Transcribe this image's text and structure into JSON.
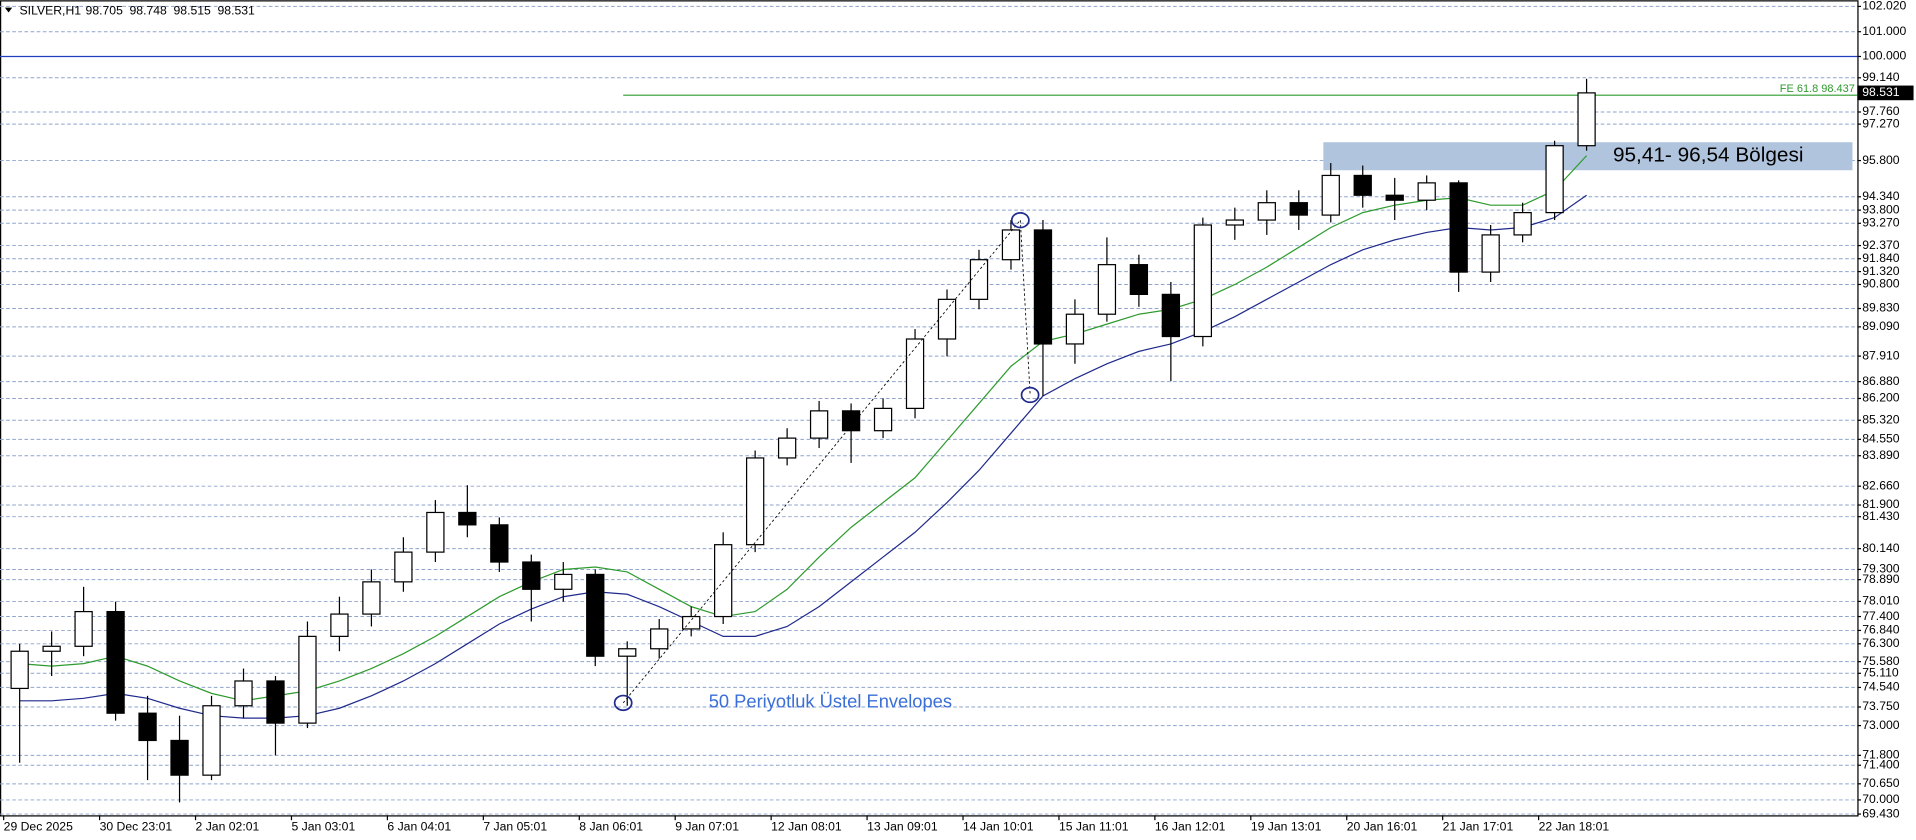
{
  "chart_data": {
    "type": "candlestick",
    "title": "SILVER,H1",
    "ohlc_header": [
      98.705,
      98.748,
      98.515,
      98.531
    ],
    "x": [
      "29 Dec 2025",
      null,
      null,
      "30 Dec 23:01",
      null,
      null,
      "2 Jan 02:01",
      null,
      null,
      "5 Jan 03:01",
      null,
      null,
      "6 Jan 04:01",
      null,
      null,
      "7 Jan 05:01",
      null,
      null,
      "8 Jan 06:01",
      null,
      null,
      "9 Jan 07:01",
      null,
      null,
      "12 Jan 08:01",
      null,
      null,
      "13 Jan 09:01",
      null,
      null,
      "14 Jan 10:01",
      null,
      null,
      "15 Jan 11:01",
      null,
      null,
      "16 Jan 12:01",
      null,
      null,
      "19 Jan 13:01",
      null,
      null,
      "20 Jan 16:01",
      null,
      null,
      "21 Jan 17:01",
      null,
      null,
      "22 Jan 18:01",
      null
    ],
    "open": [
      74.5,
      76.0,
      76.2,
      77.6,
      73.5,
      72.4,
      71.0,
      73.8,
      74.8,
      73.1,
      76.6,
      77.5,
      78.8,
      80.0,
      81.6,
      81.1,
      79.6,
      78.5,
      79.1,
      75.8,
      76.1,
      76.9,
      77.4,
      80.3,
      83.8,
      84.6,
      85.7,
      84.9,
      85.8,
      88.6,
      90.2,
      91.8,
      93.0,
      88.4,
      89.6,
      91.6,
      90.4,
      88.7,
      93.2,
      93.4,
      94.1,
      93.6,
      95.2,
      94.4,
      94.2,
      94.9,
      91.3,
      92.8,
      93.7,
      96.4
    ],
    "high": [
      76.3,
      76.8,
      78.6,
      78.0,
      74.2,
      73.4,
      74.2,
      75.3,
      75.0,
      77.2,
      78.2,
      79.3,
      80.6,
      82.1,
      82.7,
      81.4,
      79.9,
      79.6,
      79.3,
      76.4,
      77.3,
      77.8,
      80.8,
      84.1,
      85.0,
      86.1,
      86.0,
      86.2,
      89.0,
      90.6,
      92.2,
      93.4,
      93.4,
      90.2,
      92.7,
      92.0,
      90.9,
      93.5,
      93.9,
      94.6,
      94.6,
      95.7,
      95.6,
      95.1,
      95.2,
      95.0,
      93.2,
      94.1,
      96.6,
      99.1
    ],
    "low": [
      71.5,
      75.0,
      75.8,
      73.2,
      70.8,
      69.9,
      70.8,
      73.3,
      71.8,
      72.9,
      76.0,
      77.0,
      78.4,
      79.6,
      80.6,
      79.2,
      77.2,
      78.0,
      75.4,
      73.8,
      75.7,
      76.6,
      77.1,
      80.0,
      83.5,
      84.2,
      83.6,
      84.6,
      85.4,
      87.9,
      89.8,
      91.4,
      86.3,
      87.6,
      89.3,
      89.9,
      86.9,
      88.3,
      92.6,
      92.8,
      93.0,
      93.3,
      93.9,
      93.4,
      93.8,
      90.5,
      90.9,
      92.5,
      93.4,
      96.2
    ],
    "close": [
      76.0,
      76.2,
      77.6,
      73.5,
      72.4,
      71.0,
      73.8,
      74.8,
      73.1,
      76.6,
      77.5,
      78.8,
      80.0,
      81.6,
      81.1,
      79.6,
      78.5,
      79.1,
      75.8,
      76.1,
      76.9,
      77.4,
      80.3,
      83.8,
      84.6,
      85.7,
      84.9,
      85.8,
      88.6,
      90.2,
      91.8,
      93.0,
      88.4,
      89.6,
      91.6,
      90.4,
      88.7,
      93.2,
      93.4,
      94.1,
      93.6,
      95.2,
      94.4,
      94.2,
      94.9,
      91.3,
      92.8,
      93.7,
      96.4,
      98.531
    ],
    "candle_color": "#000000",
    "envelopes": [
      {
        "color": "#2e9b2e",
        "values": [
          75.5,
          75.4,
          75.5,
          75.8,
          75.4,
          74.8,
          74.3,
          74.0,
          74.2,
          74.4,
          74.8,
          75.3,
          75.9,
          76.6,
          77.4,
          78.2,
          78.8,
          79.3,
          79.4,
          79.2,
          78.5,
          77.8,
          77.4,
          77.6,
          78.5,
          79.8,
          81.0,
          82.0,
          83.0,
          84.5,
          86.0,
          87.5,
          88.5,
          88.8,
          89.2,
          89.6,
          89.8,
          90.2,
          90.8,
          91.5,
          92.3,
          93.1,
          93.7,
          94.0,
          94.2,
          94.3,
          94.0,
          94.0,
          94.6,
          96.0
        ]
      },
      {
        "color": "#1f2a8c",
        "values": [
          74.0,
          74.0,
          74.1,
          74.3,
          74.1,
          73.7,
          73.4,
          73.3,
          73.3,
          73.4,
          73.7,
          74.2,
          74.8,
          75.5,
          76.3,
          77.1,
          77.7,
          78.2,
          78.4,
          78.3,
          77.8,
          77.2,
          76.6,
          76.6,
          77.0,
          77.8,
          78.8,
          79.8,
          80.8,
          82.0,
          83.3,
          84.8,
          86.3,
          87.0,
          87.6,
          88.1,
          88.4,
          88.9,
          89.5,
          90.2,
          90.9,
          91.6,
          92.2,
          92.6,
          92.9,
          93.1,
          93.0,
          93.1,
          93.5,
          94.4
        ]
      }
    ],
    "ylim": [
      69.38,
      102.17
    ],
    "yticks": [
      {
        "value": 102.02,
        "label": "102.020"
      },
      {
        "value": 101.0,
        "label": "101.000"
      },
      {
        "value": 100.0,
        "label": "100.000"
      },
      {
        "value": 99.14,
        "label": "99.140"
      },
      {
        "value": 97.76,
        "label": "97.760"
      },
      {
        "value": 97.27,
        "label": "97.270"
      },
      {
        "value": 95.8,
        "label": "95.800"
      },
      {
        "value": 94.34,
        "label": "94.340"
      },
      {
        "value": 93.8,
        "label": "93.800"
      },
      {
        "value": 93.27,
        "label": "93.270"
      },
      {
        "value": 92.37,
        "label": "92.370"
      },
      {
        "value": 91.84,
        "label": "91.840"
      },
      {
        "value": 91.32,
        "label": "91.320"
      },
      {
        "value": 90.8,
        "label": "90.800"
      },
      {
        "value": 89.83,
        "label": "89.830"
      },
      {
        "value": 89.09,
        "label": "89.090"
      },
      {
        "value": 87.91,
        "label": "87.910"
      },
      {
        "value": 86.88,
        "label": "86.880"
      },
      {
        "value": 86.2,
        "label": "86.200"
      },
      {
        "value": 85.32,
        "label": "85.320"
      },
      {
        "value": 84.55,
        "label": "84.550"
      },
      {
        "value": 83.89,
        "label": "83.890"
      },
      {
        "value": 82.66,
        "label": "82.660"
      },
      {
        "value": 81.9,
        "label": "81.900"
      },
      {
        "value": 81.43,
        "label": "81.430"
      },
      {
        "value": 80.14,
        "label": "80.140"
      },
      {
        "value": 79.3,
        "label": "79.300"
      },
      {
        "value": 78.89,
        "label": "78.890"
      },
      {
        "value": 78.01,
        "label": "78.010"
      },
      {
        "value": 77.4,
        "label": "77.400"
      },
      {
        "value": 76.84,
        "label": "76.840"
      },
      {
        "value": 76.3,
        "label": "76.300"
      },
      {
        "value": 75.58,
        "label": "75.580"
      },
      {
        "value": 75.11,
        "label": "75.110"
      },
      {
        "value": 74.54,
        "label": "74.540"
      },
      {
        "value": 73.75,
        "label": "73.750"
      },
      {
        "value": 73.0,
        "label": "73.000"
      },
      {
        "value": 71.8,
        "label": "71.800"
      },
      {
        "value": 71.4,
        "label": "71.400"
      },
      {
        "value": 70.65,
        "label": "70.650"
      },
      {
        "value": 70.0,
        "label": "70.000"
      },
      {
        "value": 69.43,
        "label": "69.430"
      }
    ],
    "grid": true,
    "level_line": {
      "value": 100.0,
      "color": "#1f3fbf"
    },
    "fe_line": {
      "label": "FE 61.8 98.437",
      "value": 98.437,
      "color": "#2e9b2e"
    },
    "last_price": {
      "value": 98.531,
      "label": "98.531"
    },
    "zone": {
      "label": "95,41- 96,54 Bölgesi",
      "low": 95.41,
      "high": 96.54,
      "color": "#b0c4de"
    },
    "annotation": "50 Periyotluk Üstel Envelopes"
  }
}
